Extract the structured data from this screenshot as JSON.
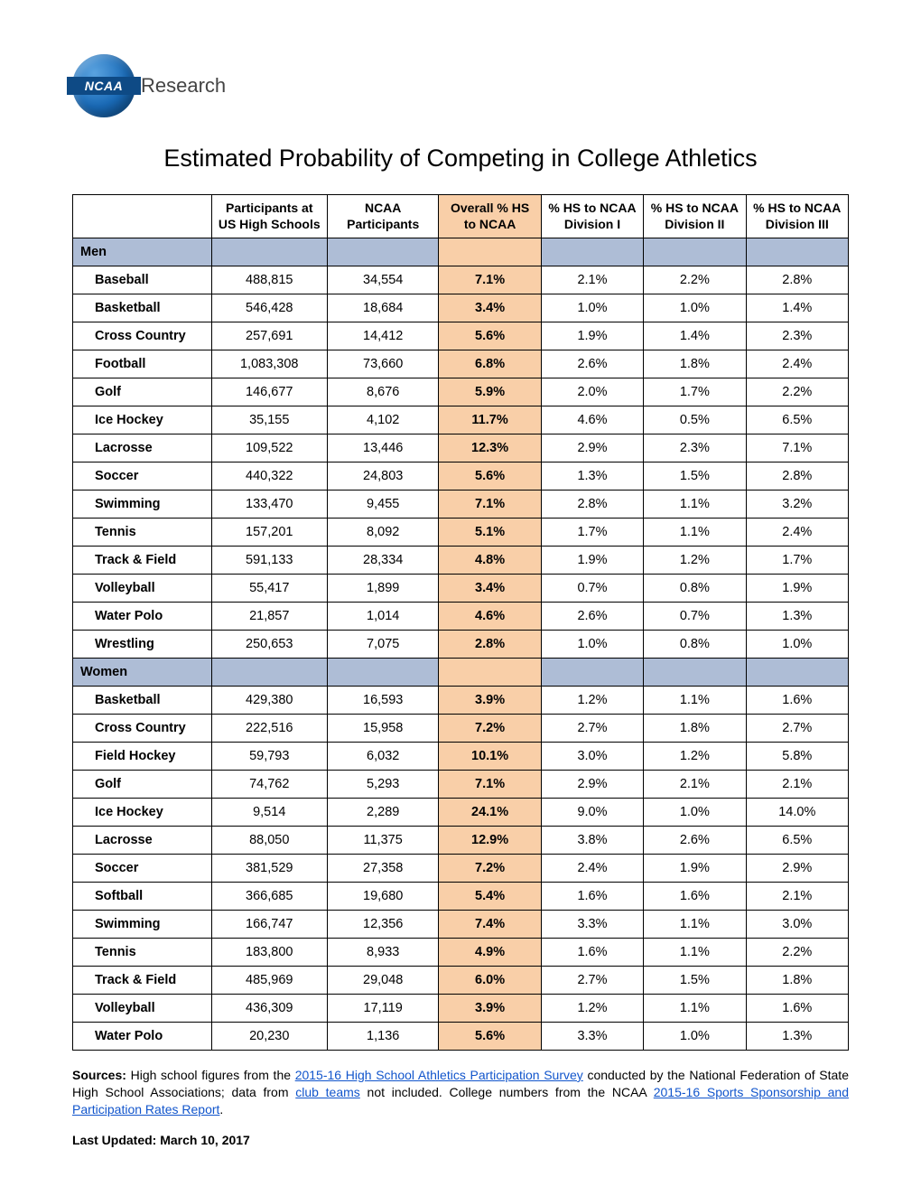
{
  "logo": {
    "acronym": "NCAA",
    "suffix": "Research"
  },
  "title": "Estimated Probability of Competing in College Athletics",
  "columns": [
    "",
    "Participants at US High Schools",
    "NCAA Participants",
    "Overall % HS to NCAA",
    "% HS to NCAA Division I",
    "% HS to NCAA Division II",
    "% HS to NCAA Division III"
  ],
  "highlight_col_index": 3,
  "colors": {
    "highlight_bg": "#f9cfa8",
    "section_bg": "#aebdd6",
    "link": "#1155cc",
    "border": "#000000"
  },
  "sections": [
    {
      "label": "Men",
      "rows": [
        {
          "sport": "Baseball",
          "hs": "488,815",
          "ncaa": "34,554",
          "overall": "7.1%",
          "d1": "2.1%",
          "d2": "2.2%",
          "d3": "2.8%"
        },
        {
          "sport": "Basketball",
          "hs": "546,428",
          "ncaa": "18,684",
          "overall": "3.4%",
          "d1": "1.0%",
          "d2": "1.0%",
          "d3": "1.4%"
        },
        {
          "sport": "Cross Country",
          "hs": "257,691",
          "ncaa": "14,412",
          "overall": "5.6%",
          "d1": "1.9%",
          "d2": "1.4%",
          "d3": "2.3%"
        },
        {
          "sport": "Football",
          "hs": "1,083,308",
          "ncaa": "73,660",
          "overall": "6.8%",
          "d1": "2.6%",
          "d2": "1.8%",
          "d3": "2.4%"
        },
        {
          "sport": "Golf",
          "hs": "146,677",
          "ncaa": "8,676",
          "overall": "5.9%",
          "d1": "2.0%",
          "d2": "1.7%",
          "d3": "2.2%"
        },
        {
          "sport": "Ice Hockey",
          "hs": "35,155",
          "ncaa": "4,102",
          "overall": "11.7%",
          "d1": "4.6%",
          "d2": "0.5%",
          "d3": "6.5%"
        },
        {
          "sport": "Lacrosse",
          "hs": "109,522",
          "ncaa": "13,446",
          "overall": "12.3%",
          "d1": "2.9%",
          "d2": "2.3%",
          "d3": "7.1%"
        },
        {
          "sport": "Soccer",
          "hs": "440,322",
          "ncaa": "24,803",
          "overall": "5.6%",
          "d1": "1.3%",
          "d2": "1.5%",
          "d3": "2.8%"
        },
        {
          "sport": "Swimming",
          "hs": "133,470",
          "ncaa": "9,455",
          "overall": "7.1%",
          "d1": "2.8%",
          "d2": "1.1%",
          "d3": "3.2%"
        },
        {
          "sport": "Tennis",
          "hs": "157,201",
          "ncaa": "8,092",
          "overall": "5.1%",
          "d1": "1.7%",
          "d2": "1.1%",
          "d3": "2.4%"
        },
        {
          "sport": "Track & Field",
          "hs": "591,133",
          "ncaa": "28,334",
          "overall": "4.8%",
          "d1": "1.9%",
          "d2": "1.2%",
          "d3": "1.7%"
        },
        {
          "sport": "Volleyball",
          "hs": "55,417",
          "ncaa": "1,899",
          "overall": "3.4%",
          "d1": "0.7%",
          "d2": "0.8%",
          "d3": "1.9%"
        },
        {
          "sport": "Water Polo",
          "hs": "21,857",
          "ncaa": "1,014",
          "overall": "4.6%",
          "d1": "2.6%",
          "d2": "0.7%",
          "d3": "1.3%"
        },
        {
          "sport": "Wrestling",
          "hs": "250,653",
          "ncaa": "7,075",
          "overall": "2.8%",
          "d1": "1.0%",
          "d2": "0.8%",
          "d3": "1.0%"
        }
      ]
    },
    {
      "label": "Women",
      "rows": [
        {
          "sport": "Basketball",
          "hs": "429,380",
          "ncaa": "16,593",
          "overall": "3.9%",
          "d1": "1.2%",
          "d2": "1.1%",
          "d3": "1.6%"
        },
        {
          "sport": "Cross Country",
          "hs": "222,516",
          "ncaa": "15,958",
          "overall": "7.2%",
          "d1": "2.7%",
          "d2": "1.8%",
          "d3": "2.7%"
        },
        {
          "sport": "Field Hockey",
          "hs": "59,793",
          "ncaa": "6,032",
          "overall": "10.1%",
          "d1": "3.0%",
          "d2": "1.2%",
          "d3": "5.8%"
        },
        {
          "sport": "Golf",
          "hs": "74,762",
          "ncaa": "5,293",
          "overall": "7.1%",
          "d1": "2.9%",
          "d2": "2.1%",
          "d3": "2.1%"
        },
        {
          "sport": "Ice Hockey",
          "hs": "9,514",
          "ncaa": "2,289",
          "overall": "24.1%",
          "d1": "9.0%",
          "d2": "1.0%",
          "d3": "14.0%"
        },
        {
          "sport": "Lacrosse",
          "hs": "88,050",
          "ncaa": "11,375",
          "overall": "12.9%",
          "d1": "3.8%",
          "d2": "2.6%",
          "d3": "6.5%"
        },
        {
          "sport": "Soccer",
          "hs": "381,529",
          "ncaa": "27,358",
          "overall": "7.2%",
          "d1": "2.4%",
          "d2": "1.9%",
          "d3": "2.9%"
        },
        {
          "sport": "Softball",
          "hs": "366,685",
          "ncaa": "19,680",
          "overall": "5.4%",
          "d1": "1.6%",
          "d2": "1.6%",
          "d3": "2.1%"
        },
        {
          "sport": "Swimming",
          "hs": "166,747",
          "ncaa": "12,356",
          "overall": "7.4%",
          "d1": "3.3%",
          "d2": "1.1%",
          "d3": "3.0%"
        },
        {
          "sport": "Tennis",
          "hs": "183,800",
          "ncaa": "8,933",
          "overall": "4.9%",
          "d1": "1.6%",
          "d2": "1.1%",
          "d3": "2.2%"
        },
        {
          "sport": "Track & Field",
          "hs": "485,969",
          "ncaa": "29,048",
          "overall": "6.0%",
          "d1": "2.7%",
          "d2": "1.5%",
          "d3": "1.8%"
        },
        {
          "sport": "Volleyball",
          "hs": "436,309",
          "ncaa": "17,119",
          "overall": "3.9%",
          "d1": "1.2%",
          "d2": "1.1%",
          "d3": "1.6%"
        },
        {
          "sport": "Water Polo",
          "hs": "20,230",
          "ncaa": "1,136",
          "overall": "5.6%",
          "d1": "3.3%",
          "d2": "1.0%",
          "d3": "1.3%"
        }
      ]
    }
  ],
  "sources": {
    "label": "Sources:",
    "part1": " High school figures from the ",
    "link1_text": "2015-16 High School Athletics Participation Survey",
    "part2": " conducted by the National Federation of State High School Associations; data from ",
    "link2_text": "club teams",
    "part3": " not included.  College numbers from the NCAA ",
    "link3_text": "2015-16 Sports Sponsorship and Participation Rates Report",
    "part4": "."
  },
  "last_updated": "Last Updated: March 10, 2017"
}
